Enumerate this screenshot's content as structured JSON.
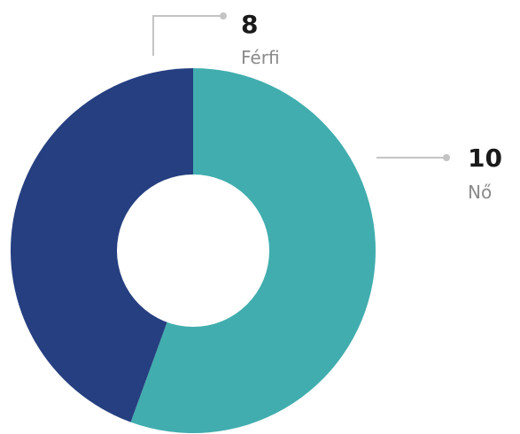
{
  "chart_data": {
    "type": "pie",
    "variant": "donut",
    "categories": [
      "Nő",
      "Férfi"
    ],
    "values": [
      10,
      8
    ],
    "colors": [
      "#41ADAE",
      "#253F80"
    ],
    "title": "",
    "legend": "none"
  }
}
